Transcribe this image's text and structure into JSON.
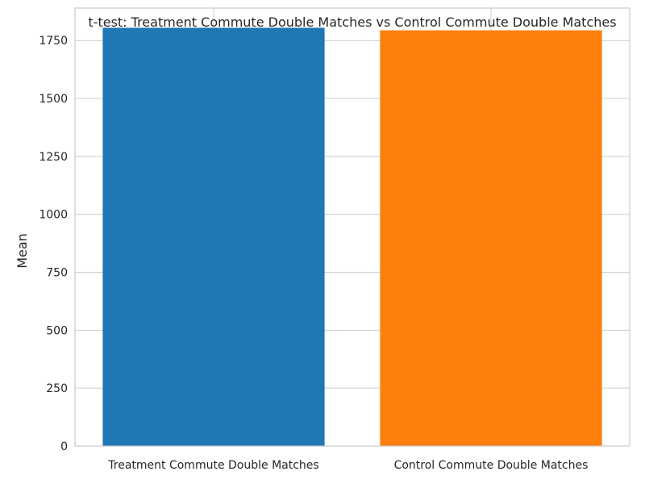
{
  "chart_data": {
    "type": "bar",
    "title": "t-test: Treatment Commute Double Matches vs Control Commute Double Matches",
    "xlabel": "",
    "ylabel": "Mean",
    "categories": [
      "Treatment Commute Double Matches",
      "Control Commute Double Matches"
    ],
    "values": [
      1805,
      1794
    ],
    "colors": [
      "#1f77b4",
      "#ff7f0e"
    ],
    "ylim": [
      0,
      1890
    ],
    "yticks": [
      0,
      250,
      500,
      750,
      1000,
      1250,
      1500,
      1750
    ],
    "grid": true,
    "legend": "none"
  }
}
